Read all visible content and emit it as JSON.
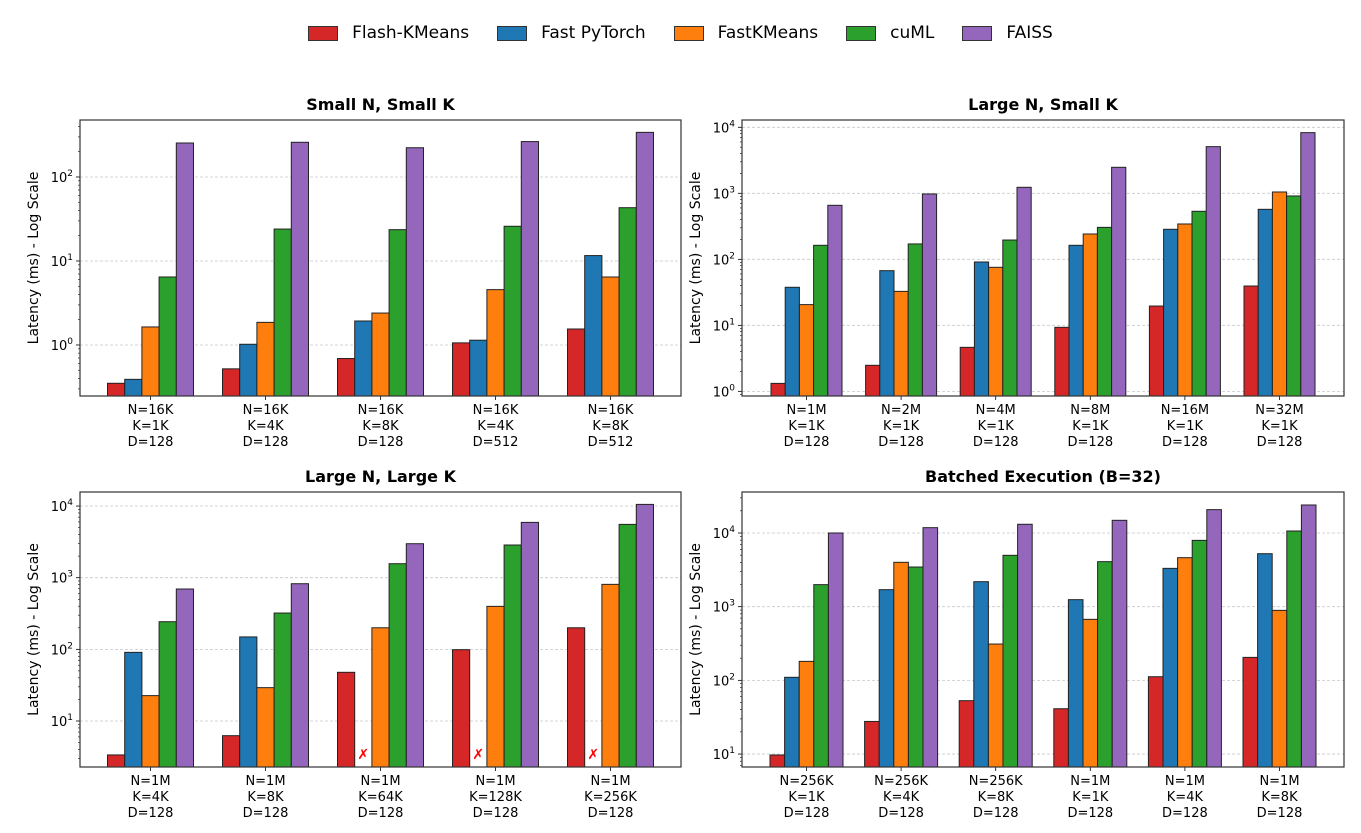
{
  "legend": {
    "placement": "top-center",
    "entries": [
      {
        "label": "Flash-KMeans",
        "color": "#d62728"
      },
      {
        "label": "Fast PyTorch",
        "color": "#1f77b4"
      },
      {
        "label": "FastKMeans",
        "color": "#ff7f0e"
      },
      {
        "label": "cuML",
        "color": "#2ca02c"
      },
      {
        "label": "FAISS",
        "color": "#9467bd"
      }
    ]
  },
  "failure_marker": "✗",
  "chart_data": [
    {
      "type": "bar",
      "title": "Small N, Small K",
      "xlabel": "",
      "ylabel": "Latency (ms) - Log Scale",
      "yscale": "log",
      "ylim": [
        0.247,
        477
      ],
      "yticks": [
        1,
        10,
        100
      ],
      "ytick_labels": [
        [
          "10",
          "0"
        ],
        [
          "10",
          "1"
        ],
        [
          "10",
          "2"
        ]
      ],
      "grid": true,
      "categories": [
        [
          "N=16K",
          "K=1K",
          "D=128"
        ],
        [
          "N=16K",
          "K=4K",
          "D=128"
        ],
        [
          "N=16K",
          "K=8K",
          "D=128"
        ],
        [
          "N=16K",
          "K=4K",
          "D=512"
        ],
        [
          "N=16K",
          "K=8K",
          "D=512"
        ]
      ],
      "series": [
        {
          "name": "Flash-KMeans",
          "values": [
            0.35,
            0.52,
            0.69,
            1.06,
            1.55
          ]
        },
        {
          "name": "Fast PyTorch",
          "values": [
            0.39,
            1.02,
            1.93,
            1.14,
            11.6
          ]
        },
        {
          "name": "FastKMeans",
          "values": [
            1.64,
            1.86,
            2.4,
            4.56,
            6.45
          ]
        },
        {
          "name": "cuML",
          "values": [
            6.45,
            24.0,
            23.6,
            25.9,
            43.1
          ]
        },
        {
          "name": "FAISS",
          "values": [
            254,
            259,
            223,
            264,
            340
          ]
        }
      ]
    },
    {
      "type": "bar",
      "title": "Large N, Small K",
      "xlabel": "",
      "ylabel": "Latency (ms) - Log Scale",
      "yscale": "log",
      "ylim": [
        0.85,
        12900
      ],
      "yticks": [
        1,
        10,
        100,
        1000,
        10000
      ],
      "ytick_labels": [
        [
          "10",
          "0"
        ],
        [
          "10",
          "1"
        ],
        [
          "10",
          "2"
        ],
        [
          "10",
          "3"
        ],
        [
          "10",
          "4"
        ]
      ],
      "grid": true,
      "categories": [
        [
          "N=1M",
          "K=1K",
          "D=128"
        ],
        [
          "N=2M",
          "K=1K",
          "D=128"
        ],
        [
          "N=4M",
          "K=1K",
          "D=128"
        ],
        [
          "N=8M",
          "K=1K",
          "D=128"
        ],
        [
          "N=16M",
          "K=1K",
          "D=128"
        ],
        [
          "N=32M",
          "K=1K",
          "D=128"
        ]
      ],
      "series": [
        {
          "name": "Flash-KMeans",
          "values": [
            1.32,
            2.48,
            4.64,
            9.33,
            19.6,
            39.4
          ]
        },
        {
          "name": "Fast PyTorch",
          "values": [
            37.7,
            67.3,
            91.1,
            163,
            285,
            572
          ]
        },
        {
          "name": "FastKMeans",
          "values": [
            20.6,
            32.7,
            75.7,
            242,
            343,
            1047
          ]
        },
        {
          "name": "cuML",
          "values": [
            163,
            171,
            196,
            305,
            534,
            912
          ]
        },
        {
          "name": "FAISS",
          "values": [
            658,
            977,
            1233,
            2478,
            5093,
            8300
          ]
        }
      ]
    },
    {
      "type": "bar",
      "title": "Large N, Large K",
      "xlabel": "",
      "ylabel": "Latency (ms) - Log Scale",
      "yscale": "log",
      "ylim": [
        2.28,
        15700
      ],
      "yticks": [
        10,
        100,
        1000,
        10000
      ],
      "ytick_labels": [
        [
          "10",
          "1"
        ],
        [
          "10",
          "2"
        ],
        [
          "10",
          "3"
        ],
        [
          "10",
          "4"
        ]
      ],
      "grid": true,
      "categories": [
        [
          "N=1M",
          "K=4K",
          "D=128"
        ],
        [
          "N=1M",
          "K=8K",
          "D=128"
        ],
        [
          "N=1M",
          "K=64K",
          "D=128"
        ],
        [
          "N=1M",
          "K=128K",
          "D=128"
        ],
        [
          "N=1M",
          "K=256K",
          "D=128"
        ]
      ],
      "series": [
        {
          "name": "Flash-KMeans",
          "values": [
            3.36,
            6.24,
            47.8,
            98.9,
            200
          ]
        },
        {
          "name": "Fast PyTorch",
          "values": [
            90.8,
            149,
            null,
            null,
            null
          ],
          "failed": [
            false,
            false,
            true,
            true,
            true
          ]
        },
        {
          "name": "FastKMeans",
          "values": [
            22.6,
            29.2,
            200,
            398,
            807
          ]
        },
        {
          "name": "cuML",
          "values": [
            243,
            321,
            1567,
            2858,
            5546
          ]
        },
        {
          "name": "FAISS",
          "values": [
            695,
            824,
            2980,
            5914,
            10540
          ]
        }
      ]
    },
    {
      "type": "bar",
      "title": "Batched Execution (B=32)",
      "xlabel": "",
      "ylabel": "Latency (ms) - Log Scale",
      "yscale": "log",
      "ylim": [
        6.67,
        36000
      ],
      "yticks": [
        10,
        100,
        1000,
        10000
      ],
      "ytick_labels": [
        [
          "10",
          "1"
        ],
        [
          "10",
          "2"
        ],
        [
          "10",
          "3"
        ],
        [
          "10",
          "4"
        ]
      ],
      "grid": true,
      "categories": [
        [
          "N=256K",
          "K=1K",
          "D=128"
        ],
        [
          "N=256K",
          "K=4K",
          "D=128"
        ],
        [
          "N=256K",
          "K=8K",
          "D=128"
        ],
        [
          "N=1M",
          "K=1K",
          "D=128"
        ],
        [
          "N=1M",
          "K=4K",
          "D=128"
        ],
        [
          "N=1M",
          "K=8K",
          "D=128"
        ]
      ],
      "series": [
        {
          "name": "Flash-KMeans",
          "values": [
            9.7,
            27.7,
            53,
            41.2,
            112,
            205
          ]
        },
        {
          "name": "Fast PyTorch",
          "values": [
            110,
            1702,
            2184,
            1245,
            3311,
            5236
          ]
        },
        {
          "name": "FastKMeans",
          "values": [
            181,
            4000,
            311,
            673,
            4624,
            891
          ]
        },
        {
          "name": "cuML",
          "values": [
            1991,
            3452,
            4977,
            4083,
            7943,
            10640
          ]
        },
        {
          "name": "FAISS",
          "values": [
            10000,
            11810,
            13130,
            14860,
            20750,
            23990
          ]
        }
      ]
    }
  ]
}
